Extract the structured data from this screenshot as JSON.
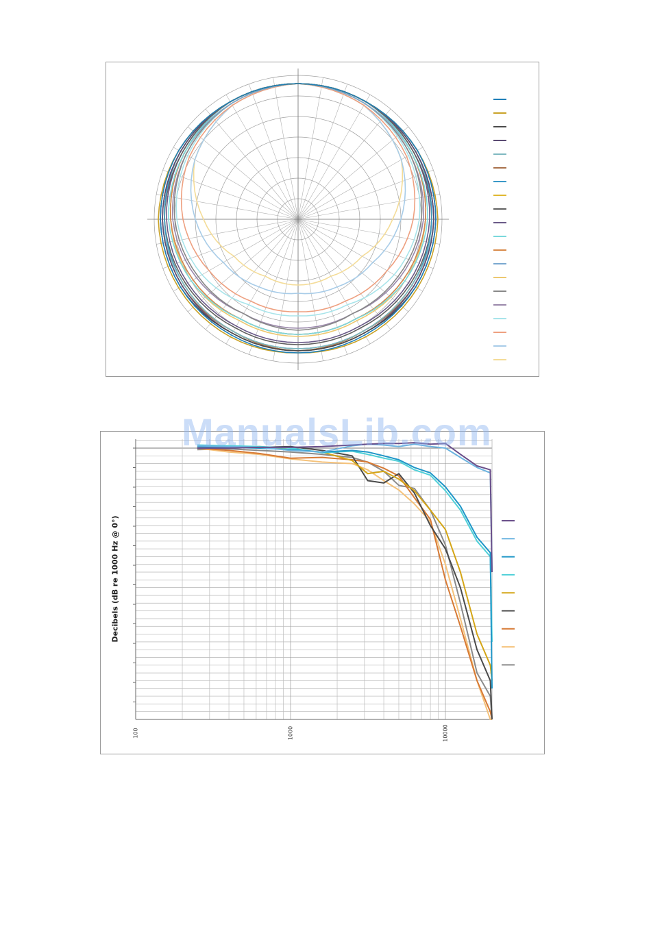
{
  "watermark": "ManualsLib.com",
  "chart_data": [
    {
      "type": "polar",
      "title": "",
      "angles_deg": [
        0,
        30,
        60,
        90,
        120,
        150,
        180
      ],
      "symmetric": true,
      "rlim": [
        -35,
        0
      ],
      "ring_step_db": 5,
      "spoke_step_deg": 10,
      "grid": true,
      "legend": "right",
      "series": [
        {
          "color": "#1f7fb8",
          "values": [
            -2,
            -2,
            -1.5,
            -1.5,
            -2,
            -2.5,
            -2.5
          ]
        },
        {
          "color": "#c9a227",
          "values": [
            -2,
            -2,
            -1.5,
            -1,
            -1.5,
            -2,
            -2.5
          ]
        },
        {
          "color": "#4a4a4a",
          "values": [
            -2,
            -2,
            -1.5,
            -1.5,
            -2,
            -3,
            -3
          ]
        },
        {
          "color": "#5a4a72",
          "values": [
            -2,
            -2,
            -2,
            -2,
            -2.5,
            -3,
            -3
          ]
        },
        {
          "color": "#7fb8c0",
          "values": [
            -2,
            -2,
            -2,
            -2,
            -3,
            -3.5,
            -3.5
          ]
        },
        {
          "color": "#a8704a",
          "values": [
            -2,
            -2,
            -2,
            -2,
            -2.5,
            -3.5,
            -3
          ]
        },
        {
          "color": "#3a98c8",
          "values": [
            -2,
            -2,
            -2,
            -2.5,
            -3,
            -3.5,
            -3.5
          ]
        },
        {
          "color": "#e0b830",
          "values": [
            -2,
            -2,
            -2,
            -2.5,
            -3,
            -3.5,
            -3
          ]
        },
        {
          "color": "#606060",
          "values": [
            -2,
            -2,
            -2.5,
            -2.5,
            -3.5,
            -4.5,
            -4.5
          ]
        },
        {
          "color": "#6a5a88",
          "values": [
            -2,
            -2,
            -2.5,
            -3,
            -4,
            -5,
            -5
          ]
        },
        {
          "color": "#7ad8dc",
          "values": [
            -2,
            -2,
            -3,
            -3.5,
            -5,
            -7,
            -7
          ]
        },
        {
          "color": "#d88a4a",
          "values": [
            -2,
            -2,
            -3,
            -4,
            -5.5,
            -7,
            -7
          ]
        },
        {
          "color": "#7aa8d0",
          "values": [
            -2,
            -2.5,
            -3,
            -4,
            -5.5,
            -7,
            -7
          ]
        },
        {
          "color": "#ecc870",
          "values": [
            -2,
            -2.5,
            -3,
            -4,
            -5,
            -6.5,
            -6.5
          ]
        },
        {
          "color": "#888888",
          "values": [
            -2,
            -2.5,
            -3.5,
            -5,
            -7,
            -8.5,
            -8
          ]
        },
        {
          "color": "#9a88aa",
          "values": [
            -2,
            -2.5,
            -3.5,
            -4.5,
            -6.5,
            -8.5,
            -8.5
          ]
        },
        {
          "color": "#a8e4ea",
          "values": [
            -2,
            -2.5,
            -4,
            -5.5,
            -8,
            -11,
            -11.5
          ]
        },
        {
          "color": "#eea080",
          "values": [
            -2,
            -3,
            -4.5,
            -7,
            -10,
            -12,
            -12.5
          ]
        },
        {
          "color": "#a8cce8",
          "values": [
            -2,
            -3,
            -6,
            -10,
            -14,
            -16,
            -17
          ]
        },
        {
          "color": "#f4dc98",
          "values": [
            -2,
            -3,
            -6,
            -12,
            -17,
            -19,
            -19
          ]
        }
      ]
    },
    {
      "type": "line",
      "xscale": "log",
      "xlabel": "",
      "ylabel": "Decibels (dB re 1000 Hz @ 0°)",
      "xlim": [
        100,
        20000
      ],
      "ylim": [
        -35,
        1
      ],
      "xticks": [
        "100",
        "1000",
        "10000"
      ],
      "grid": true,
      "legend": "right",
      "x": [
        250,
        400,
        630,
        1000,
        1600,
        2500,
        3150,
        4000,
        5000,
        6300,
        8000,
        10000,
        12500,
        16000,
        19500,
        20000
      ],
      "series": [
        {
          "color": "#6a4f8a",
          "values": [
            0,
            0,
            0.1,
            0.1,
            0.2,
            0.4,
            0.5,
            0.6,
            0.6,
            0.7,
            0.5,
            0.6,
            -0.8,
            -2.3,
            -2.8,
            -16
          ]
        },
        {
          "color": "#6cb4e0",
          "values": [
            0.3,
            0.2,
            0.1,
            -0.3,
            -0.5,
            0.3,
            0.5,
            0.4,
            0.2,
            0.5,
            0.2,
            0.0,
            -1.2,
            -2.5,
            -3.2,
            -16
          ]
        },
        {
          "color": "#1f96c8",
          "values": [
            0.2,
            0.1,
            0,
            -0.2,
            -0.5,
            -0.3,
            -0.5,
            -1,
            -1.5,
            -2.5,
            -3.2,
            -5,
            -7.5,
            -11.5,
            -13.5,
            -31
          ]
        },
        {
          "color": "#4fd0d8",
          "values": [
            0.4,
            0.3,
            0.2,
            0,
            -0.6,
            -0.4,
            -0.8,
            -1.3,
            -1.7,
            -2.8,
            -3.5,
            -5.5,
            -8,
            -12,
            -14,
            -25
          ]
        },
        {
          "color": "#d4a516",
          "values": [
            0.2,
            0,
            0.2,
            -0.2,
            -0.5,
            -1.6,
            -3.3,
            -3,
            -4,
            -5.5,
            -8,
            -10.5,
            -16,
            -24,
            -28,
            -30
          ]
        },
        {
          "color": "#4a4a4a",
          "values": [
            0,
            0,
            0.1,
            0.2,
            -0.3,
            -1,
            -4.2,
            -4.5,
            -3.3,
            -5.8,
            -10,
            -13,
            -18,
            -26,
            -30,
            -35
          ]
        },
        {
          "color": "#d77a35",
          "values": [
            0,
            -0.3,
            -0.7,
            -1.3,
            -1.2,
            -1.5,
            -1.8,
            -2.6,
            -3.6,
            -6.4,
            -9.2,
            -17,
            -23,
            -30,
            -34,
            -35
          ]
        },
        {
          "color": "#f5c27a",
          "values": [
            0,
            -0.5,
            -0.8,
            -1.4,
            -1.8,
            -2,
            -2.8,
            -4.2,
            -5.4,
            -7.2,
            -9.5,
            -15,
            -22,
            -30,
            -35,
            -35
          ]
        },
        {
          "color": "#8a8a8a",
          "values": [
            -0.2,
            -0.1,
            -0.3,
            -0.5,
            -0.8,
            -1.2,
            -1.8,
            -3,
            -4.8,
            -5.2,
            -8,
            -12.5,
            -20,
            -29,
            -32,
            -35
          ]
        }
      ]
    }
  ]
}
